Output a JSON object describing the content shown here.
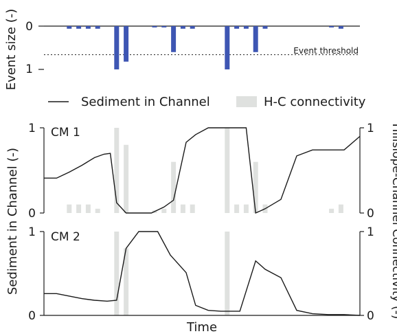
{
  "chart_data": [
    {
      "id": "event-panel",
      "type": "bar",
      "ylabel": "Event size (-)",
      "ylim": [
        0,
        1
      ],
      "y_inverted": true,
      "y_ticks": [
        0,
        1
      ],
      "y_tick_labels": [
        "0",
        "1"
      ],
      "x_range": [
        0,
        100
      ],
      "bar_color": "#3e56b3",
      "threshold": {
        "value": 0.66,
        "label": "Event threshold"
      },
      "x": [
        8,
        11,
        14,
        17,
        23,
        26,
        35,
        38,
        41,
        44,
        47,
        58,
        61,
        64,
        67,
        70,
        91,
        94
      ],
      "values": [
        0.06,
        0.06,
        0.06,
        0.06,
        1.0,
        0.82,
        0.03,
        0.03,
        0.6,
        0.06,
        0.06,
        1.0,
        0.06,
        0.06,
        0.6,
        0.06,
        0.03,
        0.06
      ]
    },
    {
      "id": "legend",
      "entries": [
        {
          "name": "Sediment in Channel",
          "kind": "line",
          "color": "#1a1a1a"
        },
        {
          "name": "H-C connectivity",
          "kind": "bar",
          "color": "#dfe1df"
        }
      ]
    },
    {
      "id": "cm1-panel",
      "type": "line",
      "title": "CM 1",
      "ylim": [
        0,
        1
      ],
      "y_ticks_left": [
        "0",
        "1"
      ],
      "y_ticks_right": [
        "0",
        "1"
      ],
      "x_range": [
        0,
        100
      ],
      "line_color": "#1a1a1a",
      "connectivity_color": "#dfe1df",
      "connectivity_x": [
        8,
        11,
        14,
        17,
        23,
        26,
        35,
        38,
        41,
        44,
        47,
        58,
        61,
        64,
        67,
        70,
        91,
        94
      ],
      "connectivity_values": [
        0.1,
        0.1,
        0.1,
        0.05,
        1.0,
        0.8,
        0.03,
        0.05,
        0.6,
        0.1,
        0.1,
        1.0,
        0.1,
        0.1,
        0.6,
        0.1,
        0.05,
        0.1
      ],
      "line_x": [
        0,
        4,
        8,
        12,
        16,
        19,
        21,
        23,
        26,
        30,
        34,
        38,
        41,
        45,
        48,
        52,
        56,
        60,
        64,
        67,
        70,
        75,
        80,
        85,
        90,
        95,
        100
      ],
      "line_y": [
        0.41,
        0.41,
        0.48,
        0.56,
        0.65,
        0.69,
        0.7,
        0.12,
        0.0,
        0.0,
        0.0,
        0.07,
        0.15,
        0.83,
        0.92,
        1.0,
        1.0,
        1.0,
        1.0,
        0.0,
        0.05,
        0.16,
        0.67,
        0.74,
        0.74,
        0.74,
        0.9
      ]
    },
    {
      "id": "cm2-panel",
      "type": "line",
      "title": "CM 2",
      "ylim": [
        0,
        1
      ],
      "y_ticks_left": [
        "0",
        "1"
      ],
      "y_ticks_right": [
        "0",
        "1"
      ],
      "x_range": [
        0,
        100
      ],
      "xlabel": "Time",
      "line_color": "#1a1a1a",
      "connectivity_color": "#dfe1df",
      "connectivity_x": [
        23,
        26,
        58
      ],
      "connectivity_values": [
        1.0,
        0.8,
        1.0
      ],
      "line_x": [
        0,
        4,
        8,
        12,
        16,
        20,
        23,
        26,
        30,
        33,
        36,
        40,
        45,
        48,
        52,
        56,
        60,
        62,
        67,
        70,
        75,
        80,
        85,
        90,
        95,
        100
      ],
      "line_y": [
        0.26,
        0.26,
        0.23,
        0.2,
        0.18,
        0.17,
        0.18,
        0.8,
        1.0,
        1.0,
        1.0,
        0.72,
        0.51,
        0.12,
        0.06,
        0.05,
        0.05,
        0.05,
        0.65,
        0.55,
        0.45,
        0.06,
        0.02,
        0.01,
        0.01,
        0.0
      ]
    }
  ],
  "shared_labels": {
    "left_ylabel": "Sediment in Channel (-)",
    "right_ylabel": "Hillslope-Channel Connectivity (-)"
  }
}
